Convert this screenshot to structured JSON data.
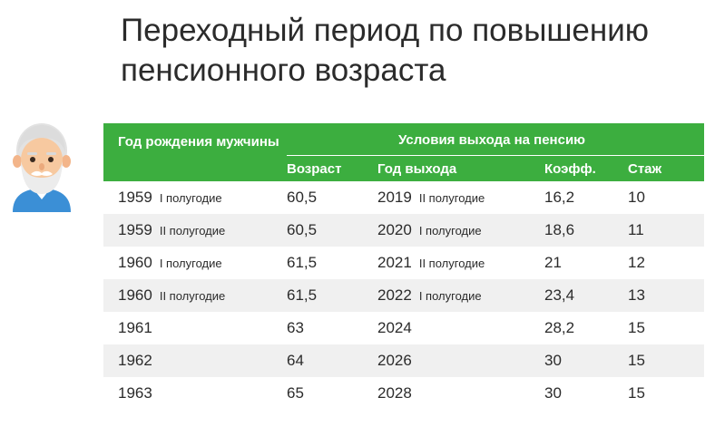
{
  "title": {
    "line1": "Переходный период по повышению",
    "line2": "пенсионного возраста"
  },
  "colors": {
    "header_bg": "#3cae3f",
    "row_alt_bg": "#f0f0f0",
    "text": "#2b2b2b"
  },
  "avatar": {
    "icon": "elderly-man-icon"
  },
  "table": {
    "header": {
      "birth": "Год рождения мужчины",
      "conditions": "Условия выхода на пенсию",
      "age": "Возраст",
      "exit_year": "Год выхода",
      "coef": "Коэфф.",
      "experience": "Стаж"
    },
    "rows": [
      {
        "birth_year": "1959",
        "birth_half": "I полугодие",
        "age": "60,5",
        "exit_year": "2019",
        "exit_half": "II полугодие",
        "coef": "16,2",
        "experience": "10"
      },
      {
        "birth_year": "1959",
        "birth_half": "II полугодие",
        "age": "60,5",
        "exit_year": "2020",
        "exit_half": "I полугодие",
        "coef": "18,6",
        "experience": "11"
      },
      {
        "birth_year": "1960",
        "birth_half": "I полугодие",
        "age": "61,5",
        "exit_year": "2021",
        "exit_half": "II полугодие",
        "coef": "21",
        "experience": "12"
      },
      {
        "birth_year": "1960",
        "birth_half": "II полугодие",
        "age": "61,5",
        "exit_year": "2022",
        "exit_half": "I полугодие",
        "coef": "23,4",
        "experience": "13"
      },
      {
        "birth_year": "1961",
        "birth_half": "",
        "age": "63",
        "exit_year": "2024",
        "exit_half": "",
        "coef": "28,2",
        "experience": "15"
      },
      {
        "birth_year": "1962",
        "birth_half": "",
        "age": "64",
        "exit_year": "2026",
        "exit_half": "",
        "coef": "30",
        "experience": "15"
      },
      {
        "birth_year": "1963",
        "birth_half": "",
        "age": "65",
        "exit_year": "2028",
        "exit_half": "",
        "coef": "30",
        "experience": "15"
      }
    ]
  }
}
